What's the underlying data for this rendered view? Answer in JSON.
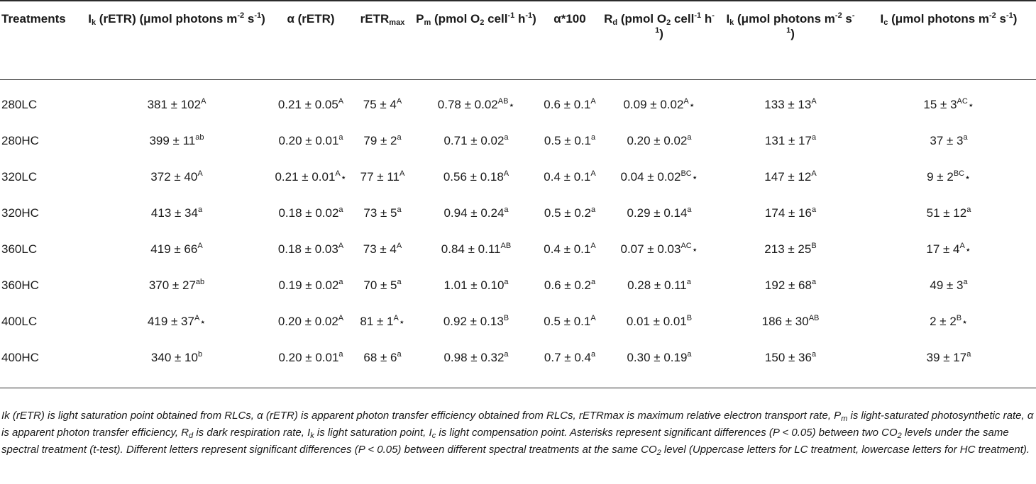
{
  "table": {
    "headers": [
      {
        "name": "header-treatments",
        "main": "Treatments"
      },
      {
        "name": "header-ik-retr",
        "main": "I",
        "sub": "k",
        "rest": " (rETR) (μmol photons m",
        "sup2": "-2",
        "rest2": " s",
        "sup3": "-1",
        "rest3": ")"
      },
      {
        "name": "header-alpha-retr",
        "main": "α (rETR)"
      },
      {
        "name": "header-retrmax",
        "main": "rETR",
        "sub": "max"
      },
      {
        "name": "header-pm",
        "main": "P",
        "sub": "m",
        "rest": " (pmol O",
        "sub2": "2",
        "rest2": " cell",
        "sup2": "-1",
        "rest3": " h",
        "sup3": "-1",
        "rest4": ")"
      },
      {
        "name": "header-alpha100",
        "main": "α*100"
      },
      {
        "name": "header-rd",
        "main": "R",
        "sub": "d",
        "rest": " (pmol O",
        "sub2": "2",
        "rest2": " cell",
        "sup2": "-1",
        "rest3": " h",
        "sup3": "-1",
        "rest4": ")"
      },
      {
        "name": "header-ik",
        "main": "I",
        "sub": "k",
        "rest": " (μmol photons m",
        "sup2": "-2",
        "rest2": " s",
        "sup3": "-1",
        "rest3": ")"
      },
      {
        "name": "header-ic",
        "main": "I",
        "sub": "c",
        "rest": " (μmol photons m",
        "sup2": "-2",
        "rest2": " s",
        "sup3": "-1",
        "rest3": ")"
      }
    ],
    "rows": [
      {
        "treatment": "280LC",
        "cells": [
          {
            "v": "381 ± 102",
            "sup": "A",
            "star": ""
          },
          {
            "v": "0.21 ± 0.05",
            "sup": "A",
            "star": ""
          },
          {
            "v": "75 ± 4",
            "sup": "A",
            "star": ""
          },
          {
            "v": "0.78 ± 0.02",
            "sup": "AB",
            "star": "⋆"
          },
          {
            "v": "0.6 ± 0.1",
            "sup": "A",
            "star": ""
          },
          {
            "v": "0.09 ± 0.02",
            "sup": "A",
            "star": "⋆"
          },
          {
            "v": "133 ± 13",
            "sup": "A",
            "star": ""
          },
          {
            "v": "15 ± 3",
            "sup": "AC",
            "star": "⋆"
          }
        ]
      },
      {
        "treatment": "280HC",
        "cells": [
          {
            "v": "399 ± 11",
            "sup": "ab",
            "star": ""
          },
          {
            "v": "0.20 ± 0.01",
            "sup": "a",
            "star": ""
          },
          {
            "v": "79 ± 2",
            "sup": "a",
            "star": ""
          },
          {
            "v": "0.71 ± 0.02",
            "sup": "a",
            "star": ""
          },
          {
            "v": "0.5 ± 0.1",
            "sup": "a",
            "star": ""
          },
          {
            "v": "0.20 ± 0.02",
            "sup": "a",
            "star": ""
          },
          {
            "v": "131 ± 17",
            "sup": "a",
            "star": ""
          },
          {
            "v": "37 ± 3",
            "sup": "a",
            "star": ""
          }
        ]
      },
      {
        "treatment": "320LC",
        "cells": [
          {
            "v": "372 ± 40",
            "sup": "A",
            "star": ""
          },
          {
            "v": "0.21 ± 0.01",
            "sup": "A",
            "star": "⋆"
          },
          {
            "v": "77 ± 11",
            "sup": "A",
            "star": ""
          },
          {
            "v": "0.56 ± 0.18",
            "sup": "A",
            "star": ""
          },
          {
            "v": "0.4 ± 0.1",
            "sup": "A",
            "star": ""
          },
          {
            "v": "0.04 ± 0.02",
            "sup": "BC",
            "star": "⋆"
          },
          {
            "v": "147 ± 12",
            "sup": "A",
            "star": ""
          },
          {
            "v": "9 ± 2",
            "sup": "BC",
            "star": "⋆"
          }
        ]
      },
      {
        "treatment": "320HC",
        "cells": [
          {
            "v": "413 ± 34",
            "sup": "a",
            "star": ""
          },
          {
            "v": "0.18 ± 0.02",
            "sup": "a",
            "star": ""
          },
          {
            "v": "73 ± 5",
            "sup": "a",
            "star": ""
          },
          {
            "v": "0.94 ± 0.24",
            "sup": "a",
            "star": ""
          },
          {
            "v": "0.5 ± 0.2",
            "sup": "a",
            "star": ""
          },
          {
            "v": "0.29 ± 0.14",
            "sup": "a",
            "star": ""
          },
          {
            "v": "174 ± 16",
            "sup": "a",
            "star": ""
          },
          {
            "v": "51 ± 12",
            "sup": "a",
            "star": ""
          }
        ]
      },
      {
        "treatment": "360LC",
        "cells": [
          {
            "v": "419 ± 66",
            "sup": "A",
            "star": ""
          },
          {
            "v": "0.18 ± 0.03",
            "sup": "A",
            "star": ""
          },
          {
            "v": "73 ± 4",
            "sup": "A",
            "star": ""
          },
          {
            "v": "0.84 ± 0.11",
            "sup": "AB",
            "star": ""
          },
          {
            "v": "0.4 ± 0.1",
            "sup": "A",
            "star": ""
          },
          {
            "v": "0.07 ± 0.03",
            "sup": "AC",
            "star": "⋆"
          },
          {
            "v": "213 ± 25",
            "sup": "B",
            "star": ""
          },
          {
            "v": "17 ± 4",
            "sup": "A",
            "star": "⋆"
          }
        ]
      },
      {
        "treatment": "360HC",
        "cells": [
          {
            "v": "370 ± 27",
            "sup": "ab",
            "star": ""
          },
          {
            "v": "0.19 ± 0.02",
            "sup": "a",
            "star": ""
          },
          {
            "v": "70 ± 5",
            "sup": "a",
            "star": ""
          },
          {
            "v": "1.01 ± 0.10",
            "sup": "a",
            "star": ""
          },
          {
            "v": "0.6 ± 0.2",
            "sup": "a",
            "star": ""
          },
          {
            "v": "0.28 ± 0.11",
            "sup": "a",
            "star": ""
          },
          {
            "v": "192 ± 68",
            "sup": "a",
            "star": ""
          },
          {
            "v": "49 ± 3",
            "sup": "a",
            "star": ""
          }
        ]
      },
      {
        "treatment": "400LC",
        "cells": [
          {
            "v": "419 ± 37",
            "sup": "A",
            "star": "⋆"
          },
          {
            "v": "0.20 ± 0.02",
            "sup": "A",
            "star": ""
          },
          {
            "v": "81 ± 1",
            "sup": "A",
            "star": "⋆"
          },
          {
            "v": "0.92 ± 0.13",
            "sup": "B",
            "star": ""
          },
          {
            "v": "0.5 ± 0.1",
            "sup": "A",
            "star": ""
          },
          {
            "v": "0.01 ± 0.01",
            "sup": "B",
            "star": ""
          },
          {
            "v": "186 ± 30",
            "sup": "AB",
            "star": ""
          },
          {
            "v": "2 ± 2",
            "sup": "B",
            "star": "⋆"
          }
        ]
      },
      {
        "treatment": "400HC",
        "cells": [
          {
            "v": "340 ± 10",
            "sup": "b",
            "star": ""
          },
          {
            "v": "0.20 ± 0.01",
            "sup": "a",
            "star": ""
          },
          {
            "v": "68 ± 6",
            "sup": "a",
            "star": ""
          },
          {
            "v": "0.98 ± 0.32",
            "sup": "a",
            "star": ""
          },
          {
            "v": "0.7 ± 0.4",
            "sup": "a",
            "star": ""
          },
          {
            "v": "0.30 ± 0.19",
            "sup": "a",
            "star": ""
          },
          {
            "v": "150 ± 36",
            "sup": "a",
            "star": ""
          },
          {
            "v": "39 ± 17",
            "sup": "a",
            "star": ""
          }
        ]
      }
    ]
  },
  "footnote": {
    "p1": "Ik (rETR) is light saturation point obtained from RLCs, α (rETR) is apparent photon transfer efficiency obtained from RLCs, rETRmax is maximum relative electron transport rate, ",
    "pm": "P",
    "pm_sub": "m",
    "p2": " is light-saturated photosynthetic rate, α is apparent photon transfer efficiency, ",
    "rd": "R",
    "rd_sub": "d",
    "p3": " is dark respiration rate, ",
    "ik": "I",
    "ik_sub": "k",
    "p4": " is light saturation point, ",
    "ic": "I",
    "ic_sub": "c",
    "p5": " is light compensation point. Asterisks represent significant differences (P < 0.05) between two CO",
    "co2_sub": "2",
    "p6": " levels under the same spectral treatment (t-test). Different letters represent significant differences (P < 0.05) between different spectral treatments at the same CO",
    "co2_sub2": "2",
    "p7": " level (Uppercase letters for LC treatment, lowercase letters for HC treatment)."
  }
}
